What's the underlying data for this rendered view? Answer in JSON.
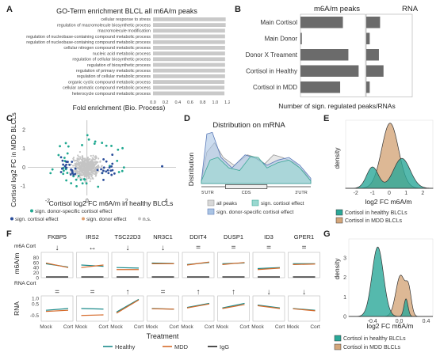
{
  "panel_labels": [
    "A",
    "B",
    "C",
    "D",
    "E",
    "F",
    "G"
  ],
  "colors": {
    "healthy": "#1a8a8a",
    "mdd": "#d66a2a",
    "igg": "#222222",
    "teal_sig": "#1fa890",
    "blue_sig": "#2a4d9a",
    "grey_bar": "#c9c9c9",
    "dark_bar": "#6b6b6b",
    "healthy_density": "#2aa898",
    "mdd_density": "#d4a67a"
  },
  "chart_data": [
    {
      "panel": "A",
      "type": "bar",
      "title": "GO-Term enrichment BLCL all m6A/m peaks",
      "xlabel": "Fold enrichment (Bio. Process)",
      "xlim": [
        0,
        1.2
      ],
      "xticks": [
        "0.0",
        "0.2",
        "0.4",
        "0.6",
        "0.8",
        "1.0",
        "1.2"
      ],
      "categories": [
        "cellular response to stress",
        "regulation of macromolecule biosynthetic process",
        "macromolecule modification",
        "regulation of nucleobase-containing compound metabolic process",
        "regulation of nucleobase-containing compound metabolic process",
        "cellular nitrogen compound metabolic process",
        "nucleic acid metabolic process",
        "regulation of cellular biosynthetic process",
        "regulation of biosynthetic process",
        "regulation of primary metabolic process",
        "regulation of cellular metabolic process",
        "organic cyclic compound metabolic process",
        "cellular aromatic compound metabolic process",
        "heterocycle compound metabolic process"
      ],
      "values": [
        1.17,
        1.17,
        1.16,
        1.16,
        1.16,
        1.16,
        1.16,
        1.16,
        1.16,
        1.16,
        1.16,
        1.15,
        1.15,
        1.15
      ]
    },
    {
      "panel": "B",
      "type": "bar",
      "xlabel": "Number of sign. regulated peaks/RNAs",
      "categories": [
        "Main Cortisol",
        "Main Donor",
        "Donor X Treament",
        "Cortisol in Healthy",
        "Cortisol in MDD"
      ],
      "series": [
        {
          "name": "m6A/m peaks",
          "values": [
            62,
            2,
            70,
            85,
            58
          ]
        },
        {
          "name": "RNA",
          "values": [
            12,
            3,
            11,
            15,
            3
          ]
        }
      ]
    },
    {
      "panel": "C",
      "type": "scatter",
      "xlabel": "Cortisol log2 FC m6A/m in healthy BLCLs",
      "ylabel": "Cortisol log2 FC in MDD BLCLs",
      "xticks": [
        "-2",
        "0",
        "2",
        "4"
      ],
      "yticks": [
        "2",
        "1",
        "0",
        "-1"
      ],
      "xlim": [
        -3,
        4.5
      ],
      "ylim": [
        -1.5,
        2.5
      ],
      "legend": [
        "sign. donor-specific cortisol effect",
        "sign. cortisol effect",
        "sign. donor effect",
        "n.s."
      ]
    },
    {
      "panel": "D",
      "type": "area",
      "title": "Distribution on mRNA",
      "ylabel": "Distribution",
      "segments": [
        "5'UTR",
        "CDS",
        "3'UTR"
      ],
      "legend": [
        "all peaks",
        "sign. cortisol effect",
        "sign. donor-specific cortisol effect"
      ]
    },
    {
      "panel": "E",
      "type": "area",
      "xlabel": "log2 FC m6A/m",
      "ylabel": "density",
      "xticks": [
        "-2",
        "-1",
        "0",
        "1",
        "2"
      ],
      "legend": [
        "Cortisol in healthy BLCLs",
        "Cortisol in MDD BLCLs"
      ]
    },
    {
      "panel": "F",
      "type": "line",
      "xlabel": "Treatment",
      "genes": [
        "FKBP5",
        "IRS2",
        "TSC22D3",
        "NR3C1",
        "DDIT4",
        "DUSP1",
        "ID3",
        "GPER1"
      ],
      "m6a_cort_symbols": [
        "↓",
        "↔",
        "↓",
        "↓",
        "=",
        "=",
        "=",
        "="
      ],
      "rna_cort_symbols": [
        "=",
        "=",
        "↑",
        "=",
        "↑",
        "↑",
        "↓",
        "↓"
      ],
      "row_labels": {
        "m6a_cort": "m6A Cort",
        "rna_cort": "RNA Cort"
      },
      "ylabel_top": "m6A/m",
      "ylabel_bottom": "RNA",
      "top_yticks": [
        "80",
        "60",
        "40",
        "20",
        "0"
      ],
      "bottom_yticks": [
        "1.0",
        "0.5",
        "-0.5"
      ],
      "xticks": [
        "Mock",
        "Cort"
      ],
      "legend": [
        "Healthy",
        "MDD",
        "IgG"
      ]
    },
    {
      "panel": "G",
      "type": "area",
      "xlabel": "log2 FC m6A/m",
      "ylabel": "density",
      "xticks": [
        "-0.4",
        "0.0",
        "0.4"
      ],
      "yticks": [
        "3",
        "2",
        "1",
        "0"
      ],
      "legend": [
        "Cortisol in healthy BLCLs",
        "Cortisol in MDD BLCLs"
      ]
    }
  ]
}
